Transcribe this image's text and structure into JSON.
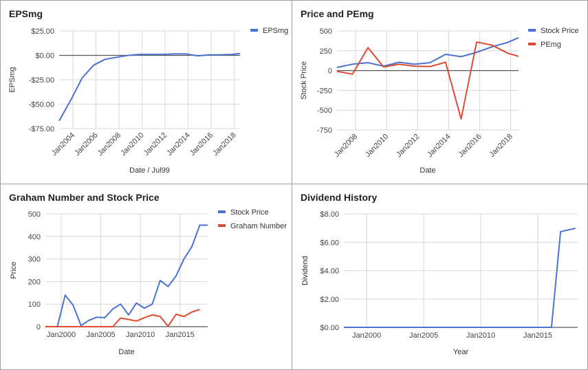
{
  "colors": {
    "blue": "#4a72d2",
    "red": "#dc4a31",
    "grid": "#d6d6d6",
    "axis": "#333333",
    "zero": "#555555"
  },
  "chart_data": [
    {
      "id": "eps",
      "type": "line",
      "title": "EPSmg",
      "xlabel": "Date / Jul99",
      "ylabel": "EPSmg",
      "xlim": [
        2002.8,
        2018.5
      ],
      "ylim": [
        -75,
        25
      ],
      "yticks": [
        25,
        0,
        -25,
        -50,
        -75
      ],
      "ytick_labels": [
        "$25.00",
        "$0.00",
        "-$25.00",
        "-$50.00",
        "-$75.00"
      ],
      "xticks": [
        2004,
        2006,
        2008,
        2010,
        2012,
        2014,
        2016,
        2018
      ],
      "xtick_labels": [
        "Jan2004",
        "Jan2006",
        "Jan2008",
        "Jan2010",
        "Jan2012",
        "Jan2014",
        "Jan2016",
        "Jan2018"
      ],
      "xtick_rotate": true,
      "zero_line": true,
      "legend_position": "top-right",
      "series": [
        {
          "name": "EPSmg",
          "color": "#4a72d2",
          "x": [
            2002.8,
            2003.8,
            2004.8,
            2005.8,
            2006.8,
            2007.8,
            2008.8,
            2009.8,
            2010.8,
            2011.8,
            2012.8,
            2013.8,
            2014.8,
            2015.8,
            2016.8,
            2017.8,
            2018.5
          ],
          "y": [
            -67,
            -46,
            -23,
            -10,
            -4,
            -2,
            0,
            1,
            1,
            1,
            1.5,
            1.5,
            -0.5,
            0.5,
            0.5,
            1,
            2
          ]
        }
      ]
    },
    {
      "id": "pe",
      "type": "line",
      "title": "Price and PEmg",
      "xlabel": "Date",
      "ylabel": "Stock Price",
      "xlim": [
        2006.8,
        2018.5
      ],
      "ylim": [
        -750,
        500
      ],
      "yticks": [
        500,
        250,
        0,
        -250,
        -500,
        -750
      ],
      "ytick_labels": [
        "500",
        "250",
        "0",
        "-250",
        "-500",
        "-750"
      ],
      "xticks": [
        2008,
        2010,
        2012,
        2014,
        2016,
        2018
      ],
      "xtick_labels": [
        "Jan2008",
        "Jan2010",
        "Jan2012",
        "Jan2014",
        "Jan2016",
        "Jan2018"
      ],
      "xtick_rotate": true,
      "zero_line": true,
      "legend_position": "top-right",
      "series": [
        {
          "name": "Stock Price",
          "color": "#4a72d2",
          "x": [
            2006.8,
            2007.8,
            2008.8,
            2009.8,
            2010.8,
            2011.8,
            2012.8,
            2013.8,
            2014.8,
            2015.8,
            2016.8,
            2017.8,
            2018.5
          ],
          "y": [
            40,
            80,
            100,
            55,
            105,
            80,
            100,
            205,
            175,
            230,
            300,
            355,
            415
          ]
        },
        {
          "name": "PEmg",
          "color": "#dc4a31",
          "x": [
            2006.8,
            2007.8,
            2008.8,
            2009.8,
            2010.8,
            2011.8,
            2012.8,
            2013.8,
            2014.8,
            2015.8,
            2016.8,
            2017.8,
            2018.5
          ],
          "y": [
            -10,
            -45,
            290,
            45,
            80,
            55,
            50,
            105,
            -610,
            360,
            320,
            220,
            180
          ]
        }
      ]
    },
    {
      "id": "graham",
      "type": "line",
      "title": "Graham Number and Stock Price",
      "xlabel": "Date",
      "ylabel": "Price",
      "xlim": [
        1998.0,
        2018.5
      ],
      "ylim": [
        0,
        500
      ],
      "yticks": [
        500,
        400,
        300,
        200,
        100,
        0
      ],
      "ytick_labels": [
        "500",
        "400",
        "300",
        "200",
        "100",
        "0"
      ],
      "xticks": [
        2000,
        2005,
        2010,
        2015
      ],
      "xtick_labels": [
        "Jan2000",
        "Jan2005",
        "Jan2010",
        "Jan2015"
      ],
      "xtick_rotate": false,
      "zero_line": false,
      "legend_position": "top-right",
      "series": [
        {
          "name": "Stock Price",
          "color": "#4a72d2",
          "x": [
            1998.0,
            1999.5,
            2000.5,
            2001.5,
            2002.5,
            2003.5,
            2004.5,
            2005.5,
            2006.5,
            2007.5,
            2008.5,
            2009.5,
            2010.5,
            2011.5,
            2012.5,
            2013.5,
            2014.5,
            2015.5,
            2016.5,
            2017.5,
            2018.5
          ],
          "y": [
            0,
            0,
            140,
            95,
            5,
            28,
            42,
            40,
            78,
            100,
            52,
            105,
            82,
            100,
            205,
            178,
            225,
            300,
            355,
            450,
            450
          ]
        },
        {
          "name": "Graham Number",
          "color": "#dc4a31",
          "x": [
            1998.0,
            1999.5,
            2000.5,
            2001.5,
            2002.5,
            2003.5,
            2004.5,
            2005.5,
            2006.5,
            2007.5,
            2008.5,
            2009.5,
            2010.5,
            2011.5,
            2012.5,
            2013.5,
            2014.5,
            2015.5,
            2016.5,
            2017.5
          ],
          "y": [
            0,
            0,
            0,
            0,
            0,
            0,
            0,
            0,
            0,
            38,
            32,
            25,
            40,
            52,
            45,
            2,
            55,
            45,
            65,
            76
          ]
        }
      ]
    },
    {
      "id": "dividend",
      "type": "line",
      "title": "Dividend History",
      "xlabel": "Year",
      "ylabel": "Dividend",
      "xlim": [
        1998.0,
        2018.5
      ],
      "ylim": [
        0,
        8
      ],
      "yticks": [
        8,
        6,
        4,
        2,
        0
      ],
      "ytick_labels": [
        "$8.00",
        "$6.00",
        "$4.00",
        "$2.00",
        "$0.00"
      ],
      "xticks": [
        2000,
        2005,
        2010,
        2015
      ],
      "xtick_labels": [
        "Jan2000",
        "Jan2005",
        "Jan2010",
        "Jan2015"
      ],
      "xtick_rotate": false,
      "zero_line": false,
      "legend_position": "none",
      "series": [
        {
          "name": "",
          "color": "#4a72d2",
          "x": [
            1998.0,
            2016.2,
            2017.0,
            2018.3
          ],
          "y": [
            0,
            0,
            6.75,
            6.98
          ]
        }
      ]
    }
  ]
}
